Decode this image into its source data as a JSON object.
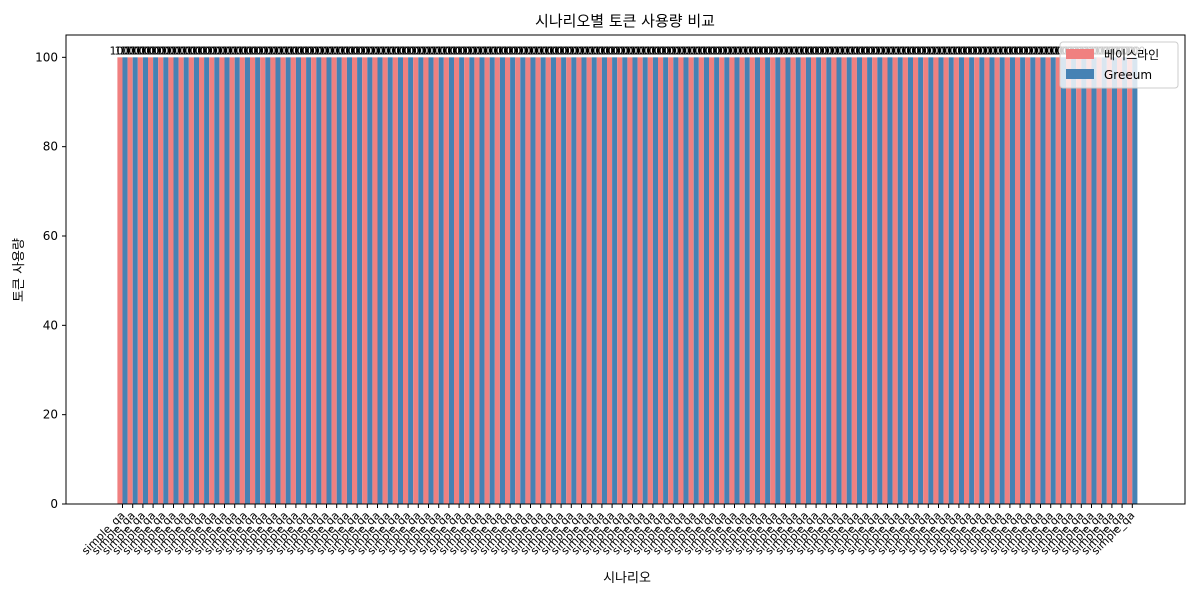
{
  "chart_data": {
    "type": "bar",
    "title": "시나리오별 토큰 사용량 비교",
    "xlabel": "시나리오",
    "ylabel": "토큰 사용량",
    "category_label": "simple_qa",
    "category_count": 100,
    "series": [
      {
        "name": "베이스라인",
        "value": 100,
        "color": "#f08080"
      },
      {
        "name": "Greeum",
        "value": 100,
        "color": "#4682b4"
      }
    ],
    "data_label_text": "100",
    "ylim": [
      0,
      105
    ],
    "yticks": [
      0,
      20,
      40,
      60,
      80,
      100
    ],
    "legend_position": "top-right",
    "grid": false
  }
}
